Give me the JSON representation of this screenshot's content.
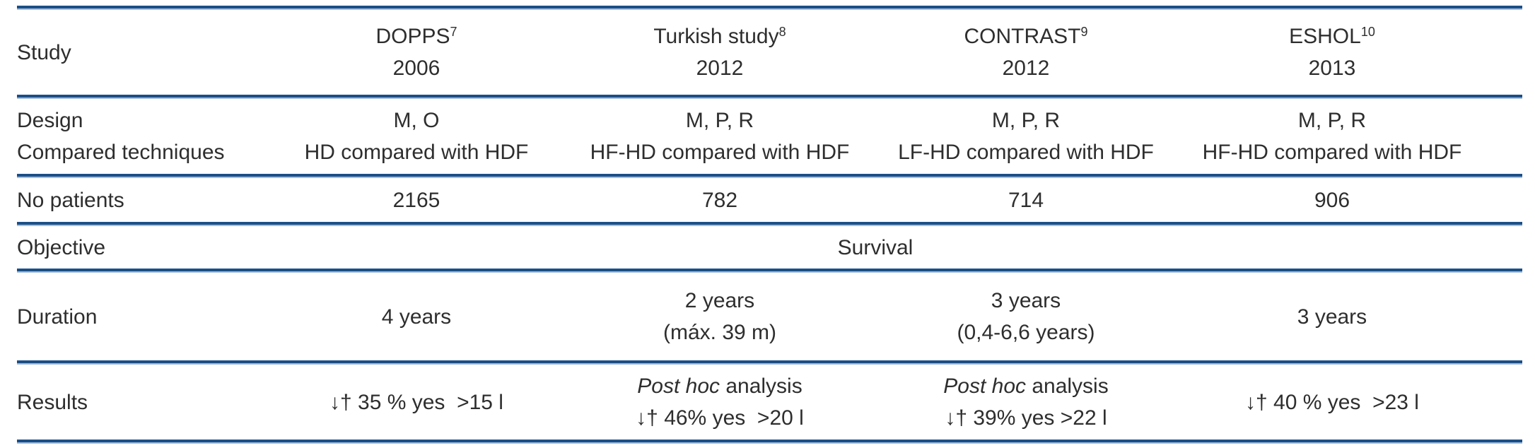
{
  "accent_rule_color": "#1b4f87",
  "accent_rule_light": "#a6bfdc",
  "table": {
    "header": {
      "label": "Study",
      "studies": [
        {
          "name": "DOPPS",
          "ref": "7",
          "year": "2006"
        },
        {
          "name": "Turkish study",
          "ref": "8",
          "year": "2012"
        },
        {
          "name": "CONTRAST",
          "ref": "9",
          "year": "2012"
        },
        {
          "name": "ESHOL",
          "ref": "10",
          "year": "2013"
        }
      ]
    },
    "design_row": {
      "label_line1": "Design",
      "label_line2": "Compared techniques",
      "cells": [
        {
          "design": "M, O",
          "technique": "HD compared with HDF"
        },
        {
          "design": "M, P, R",
          "technique": "HF-HD compared with HDF"
        },
        {
          "design": "M, P, R",
          "technique": "LF-HD compared with HDF"
        },
        {
          "design": "M, P, R",
          "technique": "HF-HD compared with HDF"
        }
      ]
    },
    "patients_row": {
      "label": "No patients",
      "values": [
        "2165",
        "782",
        "714",
        "906"
      ]
    },
    "objective_row": {
      "label": "Objective",
      "value": "Survival"
    },
    "duration_row": {
      "label": "Duration",
      "cells": [
        {
          "line1": "4 years",
          "line2": ""
        },
        {
          "line1": "2 years",
          "line2": "(máx. 39 m)"
        },
        {
          "line1": "3 years",
          "line2": "(0,4-6,6 years)"
        },
        {
          "line1": "3 years",
          "line2": ""
        }
      ]
    },
    "results_row": {
      "label": "Results",
      "cells": [
        {
          "analysis_italic": "",
          "analysis_rest": "",
          "result": "↓† 35 % yes  >15 l"
        },
        {
          "analysis_italic": "Post hoc",
          "analysis_rest": " analysis",
          "result": "↓† 46% yes  >20 l"
        },
        {
          "analysis_italic": "Post hoc",
          "analysis_rest": " analysis",
          "result": "↓† 39% yes >22 l"
        },
        {
          "analysis_italic": "",
          "analysis_rest": "",
          "result": "↓† 40 % yes  >23 l"
        }
      ]
    }
  }
}
